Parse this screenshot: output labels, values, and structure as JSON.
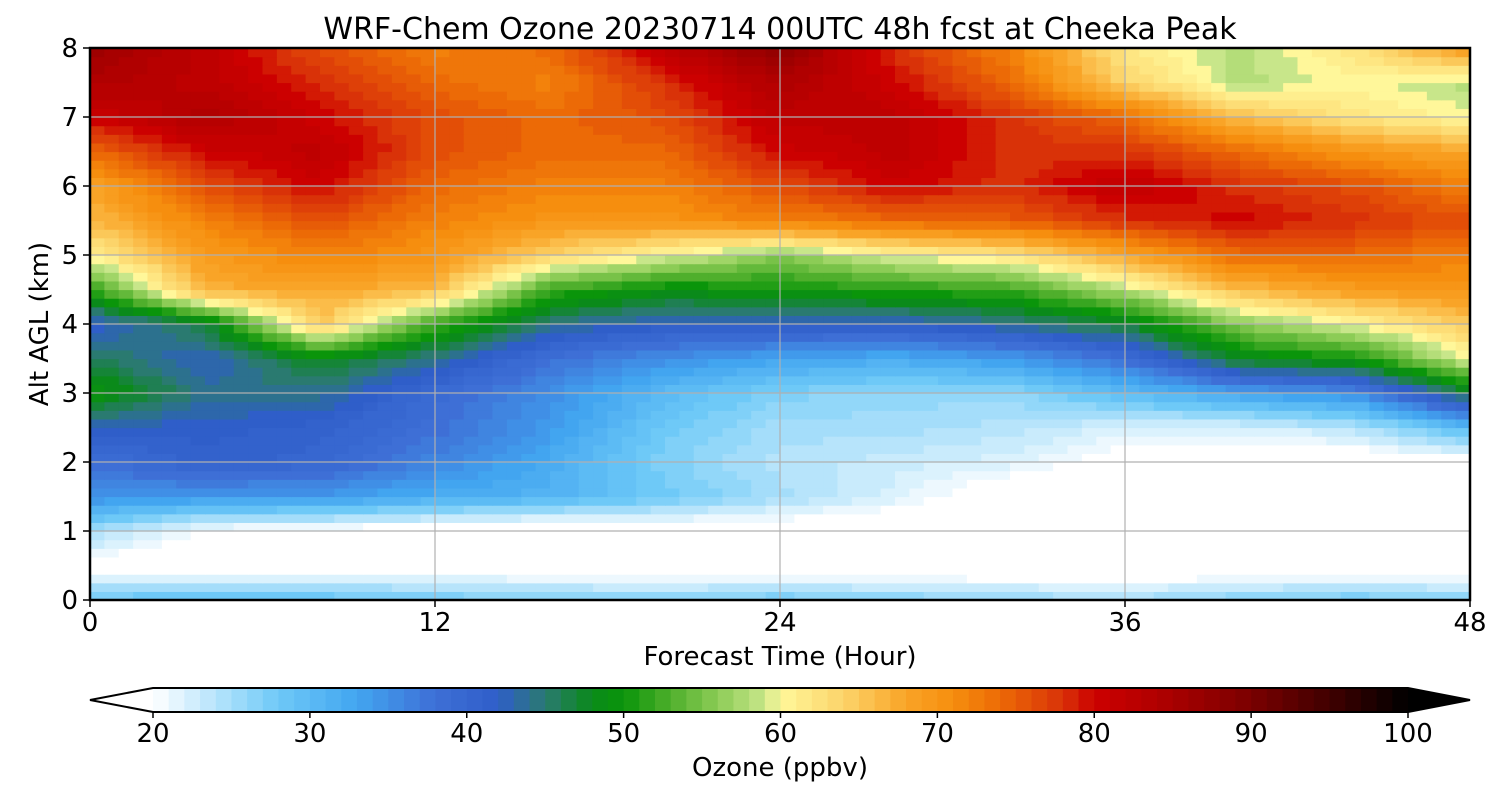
{
  "chart_data": {
    "type": "heatmap",
    "title": "WRF-Chem Ozone  20230714 00UTC 48h fcst at Cheeka Peak",
    "xlabel": "Forecast Time (Hour)",
    "ylabel": "Alt AGL (km)",
    "xlim": [
      0,
      48
    ],
    "ylim": [
      0,
      8
    ],
    "xticks": [
      0,
      12,
      24,
      36,
      48
    ],
    "yticks": [
      0,
      1,
      2,
      3,
      4,
      5,
      6,
      7,
      8
    ],
    "grid": true,
    "x_hours": [
      0,
      4,
      8,
      12,
      16,
      20,
      24,
      28,
      32,
      36,
      40,
      44,
      48
    ],
    "y_km": [
      0,
      0.5,
      1,
      1.5,
      2,
      2.5,
      3,
      3.5,
      4,
      4.5,
      5,
      5.5,
      6,
      6.5,
      7,
      7.5,
      8
    ],
    "z_ppbv": [
      [
        28,
        30,
        29,
        28,
        27,
        27,
        28,
        27,
        26,
        25,
        27,
        28,
        27
      ],
      [
        19,
        18,
        18,
        18,
        18,
        17,
        17,
        17,
        17,
        17,
        17,
        17,
        17
      ],
      [
        25,
        20,
        19,
        18,
        17,
        18,
        18,
        17,
        17,
        16,
        16,
        16,
        16
      ],
      [
        35,
        34,
        34,
        32,
        31,
        28,
        25,
        22,
        18,
        17,
        17,
        16,
        16
      ],
      [
        38,
        41,
        40,
        36,
        32,
        27,
        24,
        23,
        22,
        19,
        18,
        18,
        19
      ],
      [
        42,
        42,
        41,
        38,
        34,
        28,
        25,
        25,
        24,
        22,
        22,
        24,
        30
      ],
      [
        50,
        44,
        44,
        39,
        35,
        30,
        27,
        26,
        26,
        30,
        33,
        35,
        47
      ],
      [
        46,
        42,
        48,
        44,
        38,
        35,
        33,
        32,
        34,
        38,
        48,
        50,
        60
      ],
      [
        41,
        47,
        65,
        52,
        44,
        42,
        42,
        42,
        44,
        47,
        56,
        60,
        65
      ],
      [
        51,
        67,
        68,
        66,
        52,
        49,
        50,
        51,
        52,
        58,
        66,
        69,
        70
      ],
      [
        61,
        69,
        72,
        70,
        64,
        60,
        56,
        60,
        62,
        68,
        74,
        74,
        72
      ],
      [
        66,
        72,
        76,
        72,
        70,
        70,
        72,
        74,
        75,
        78,
        80,
        78,
        76
      ],
      [
        68,
        76,
        80,
        74,
        72,
        72,
        76,
        80,
        78,
        82,
        78,
        76,
        72
      ],
      [
        74,
        80,
        82,
        76,
        74,
        74,
        80,
        82,
        78,
        78,
        74,
        70,
        68
      ],
      [
        80,
        84,
        80,
        76,
        74,
        76,
        82,
        82,
        78,
        74,
        66,
        62,
        60
      ],
      [
        84,
        82,
        78,
        74,
        72,
        78,
        84,
        80,
        74,
        64,
        58,
        60,
        58
      ],
      [
        86,
        82,
        76,
        72,
        74,
        82,
        88,
        78,
        72,
        62,
        58,
        62,
        70
      ]
    ],
    "colorbar": {
      "label": "Ozone  (ppbv)",
      "min": 20,
      "max": 100,
      "ticks": [
        20,
        30,
        40,
        50,
        60,
        70,
        80,
        90,
        100
      ],
      "extend": "both",
      "colors": [
        {
          "v": 20,
          "c": "#ffffff"
        },
        {
          "v": 28,
          "c": "#6ec9f7"
        },
        {
          "v": 33,
          "c": "#42a5f0"
        },
        {
          "v": 38,
          "c": "#3e6fd6"
        },
        {
          "v": 42,
          "c": "#2f5ec9"
        },
        {
          "v": 45,
          "c": "#2a7a70"
        },
        {
          "v": 48,
          "c": "#0a8a1a"
        },
        {
          "v": 50,
          "c": "#0a950a"
        },
        {
          "v": 53,
          "c": "#4faf2c"
        },
        {
          "v": 56,
          "c": "#8ccc56"
        },
        {
          "v": 59,
          "c": "#c8e68a"
        },
        {
          "v": 60,
          "c": "#fff79a"
        },
        {
          "v": 64,
          "c": "#fcd46a"
        },
        {
          "v": 68,
          "c": "#f9a427"
        },
        {
          "v": 71,
          "c": "#f68e0e"
        },
        {
          "v": 74,
          "c": "#ec6a06"
        },
        {
          "v": 78,
          "c": "#d93208"
        },
        {
          "v": 80,
          "c": "#cc0000"
        },
        {
          "v": 84,
          "c": "#b00000"
        },
        {
          "v": 90,
          "c": "#7a0000"
        },
        {
          "v": 95,
          "c": "#400000"
        },
        {
          "v": 100,
          "c": "#000000"
        }
      ]
    }
  }
}
